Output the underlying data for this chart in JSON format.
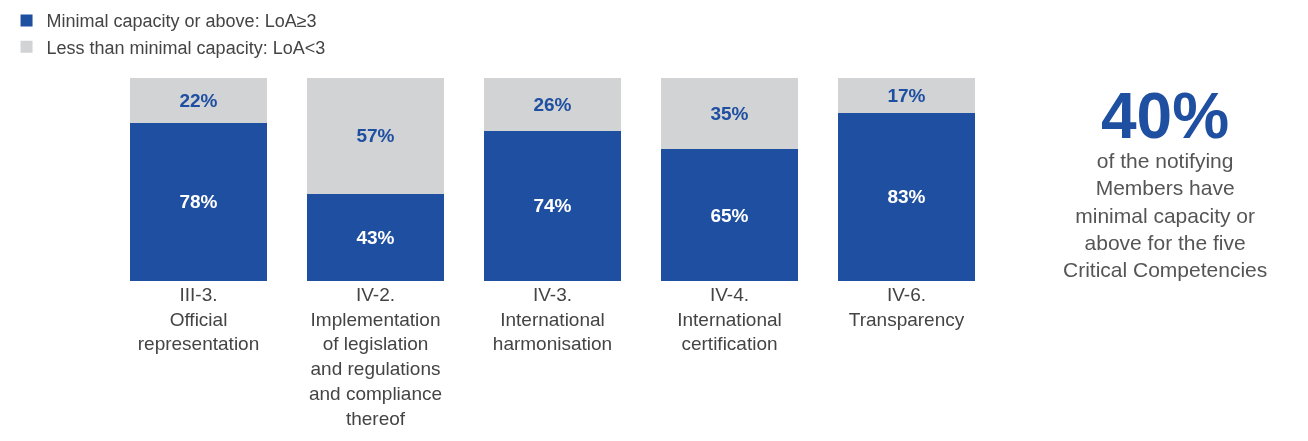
{
  "chart_data": {
    "type": "bar",
    "stacked": true,
    "legend": "top left",
    "categories": [
      "III-3.\nOfficial\nrepresentation",
      "IV-2.\nImplementation\nof legislation\nand regulations\nand compliance\nthereof",
      "IV-3.\nInternational\nharmonisation",
      "IV-4.\nInternational\ncertification",
      "IV-6.\nTransparency"
    ],
    "series": [
      {
        "name": "Minimal capacity or above: LoA≥3",
        "color": "#1f4fa0",
        "values": [
          78,
          43,
          74,
          65,
          83
        ],
        "value_labels": [
          "78%",
          "43%",
          "74%",
          "65%",
          "83%"
        ]
      },
      {
        "name": "Less than minimal capacity: LoA<3",
        "color": "#d1d3d5",
        "values": [
          22,
          57,
          26,
          35,
          17
        ],
        "value_labels": [
          "22%",
          "57%",
          "26%",
          "35%",
          "17%"
        ]
      }
    ],
    "annotations": [
      "40%",
      "of the notifying\nMembers have\nminimal capacity or\nabove for the five\nCritical Competencies"
    ]
  }
}
